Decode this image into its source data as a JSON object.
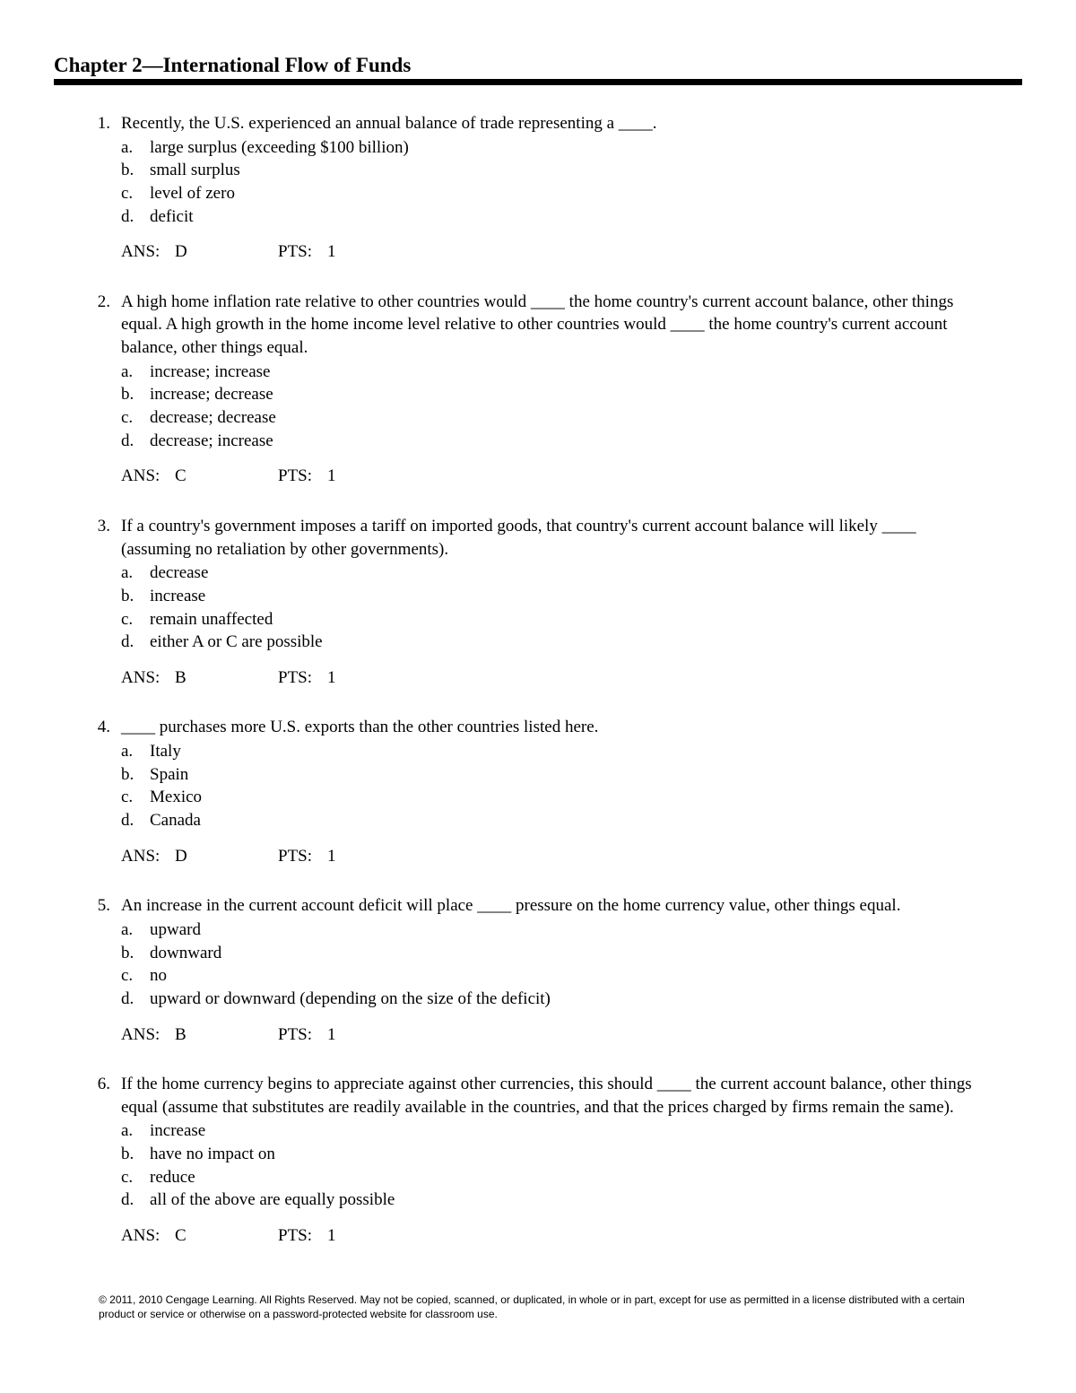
{
  "title": "Chapter 2—International Flow of Funds",
  "questions": [
    {
      "num": "1.",
      "text": "Recently, the U.S. experienced an annual balance of trade representing a ____.",
      "options": [
        {
          "l": "a.",
          "t": "large surplus (exceeding $100 billion)"
        },
        {
          "l": "b.",
          "t": "small surplus"
        },
        {
          "l": "c.",
          "t": "level of zero"
        },
        {
          "l": "d.",
          "t": "deficit"
        }
      ],
      "ans": "D",
      "pts": "1"
    },
    {
      "num": "2.",
      "text": "A high home inflation rate relative to other countries would ____ the home country's current account balance, other things equal. A high growth in the home income level relative to other countries would ____ the home country's current account balance, other things equal.",
      "options": [
        {
          "l": "a.",
          "t": "increase; increase"
        },
        {
          "l": "b.",
          "t": "increase; decrease"
        },
        {
          "l": "c.",
          "t": "decrease; decrease"
        },
        {
          "l": "d.",
          "t": "decrease; increase"
        }
      ],
      "ans": "C",
      "pts": "1"
    },
    {
      "num": "3.",
      "text": "If a country's government imposes a tariff on imported goods, that country's current account balance will likely ____ (assuming no retaliation by other governments).",
      "options": [
        {
          "l": "a.",
          "t": "decrease"
        },
        {
          "l": "b.",
          "t": "increase"
        },
        {
          "l": "c.",
          "t": "remain unaffected"
        },
        {
          "l": "d.",
          "t": "either A or C are possible"
        }
      ],
      "ans": "B",
      "pts": "1"
    },
    {
      "num": "4.",
      "text": "____ purchases more U.S. exports than the other countries listed here.",
      "options": [
        {
          "l": "a.",
          "t": "Italy"
        },
        {
          "l": "b.",
          "t": "Spain"
        },
        {
          "l": "c.",
          "t": "Mexico"
        },
        {
          "l": "d.",
          "t": "Canada"
        }
      ],
      "ans": "D",
      "pts": "1"
    },
    {
      "num": "5.",
      "text": "An increase in the current account deficit will place ____ pressure on the home currency value, other things equal.",
      "options": [
        {
          "l": "a.",
          "t": "upward"
        },
        {
          "l": "b.",
          "t": "downward"
        },
        {
          "l": "c.",
          "t": "no"
        },
        {
          "l": "d.",
          "t": "upward or downward (depending on the size of the deficit)"
        }
      ],
      "ans": "B",
      "pts": "1"
    },
    {
      "num": "6.",
      "text": "If the home currency begins to appreciate against other currencies, this should ____ the current account balance, other things equal (assume that substitutes are readily available in the countries, and that the prices charged by firms remain the same).",
      "options": [
        {
          "l": "a.",
          "t": "increase"
        },
        {
          "l": "b.",
          "t": "have no impact on"
        },
        {
          "l": "c.",
          "t": "reduce"
        },
        {
          "l": "d.",
          "t": "all of the above are equally possible"
        }
      ],
      "ans": "C",
      "pts": "1"
    }
  ],
  "ans_label": "ANS:",
  "pts_label": "PTS:",
  "footer": "© 2011, 2010 Cengage Learning. All Rights Reserved. May not be copied, scanned, or duplicated, in whole or in part, except for use as permitted in a license distributed with a certain product or service or otherwise on a password-protected website for classroom use."
}
